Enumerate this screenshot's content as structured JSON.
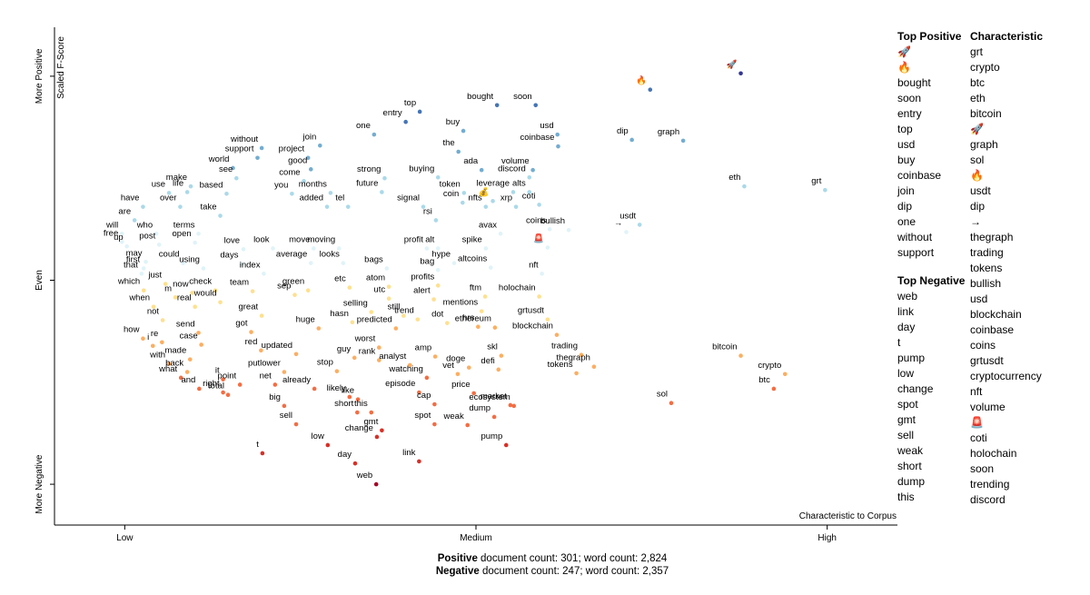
{
  "chart_data": {
    "type": "scatter",
    "x_label": "Characteristic to Corpus",
    "y_label": "Scaled F-Score",
    "xlim": [
      -0.1,
      1.1
    ],
    "ylim": [
      -0.1,
      1.12
    ],
    "xticks": [
      {
        "value": 0,
        "label": "Low"
      },
      {
        "value": 0.5,
        "label": "Medium"
      },
      {
        "value": 1,
        "label": "High"
      }
    ],
    "yticks": [
      {
        "value": 0,
        "label": "More Negative"
      },
      {
        "value": 0.5,
        "label": "Even"
      },
      {
        "value": 1,
        "label": "More Positive"
      }
    ],
    "color_scale": [
      "#a50026",
      "#d73027",
      "#f46d43",
      "#fdae61",
      "#fee090",
      "#e0f3f8",
      "#abd9e9",
      "#74add1",
      "#4575b4",
      "#313695"
    ],
    "labels": [
      "top",
      "bought",
      "soon",
      "one",
      "entry",
      "buy",
      "usd",
      "join",
      "without",
      "support",
      "project",
      "the",
      "coinbase",
      "world",
      "good",
      "ada",
      "volume",
      "dip",
      "graph",
      "make",
      "see",
      "come",
      "strong",
      "buying",
      "discord",
      "use",
      "life",
      "based",
      "you",
      "months",
      "future",
      "token",
      "leverage",
      "alts",
      "eth",
      "grt",
      "have",
      "over",
      "added",
      "tel",
      "signal",
      "coin",
      "nfts",
      "coti",
      "xrp",
      "take",
      "are",
      "rsi",
      "will",
      "who",
      "terms",
      "coins",
      "avax",
      "bullish",
      "usdt",
      "free",
      "up",
      "post",
      "open",
      "love",
      "look",
      "move",
      "moving",
      "profit",
      "alt",
      "spike",
      "may",
      "days",
      "average",
      "looks",
      "hype",
      "first",
      "could",
      "using",
      "index",
      "bags",
      "bag",
      "altcoins",
      "nft",
      "that",
      "just",
      "check",
      "team",
      "sep",
      "green",
      "etc",
      "atom",
      "profits",
      "which",
      "m",
      "now",
      "utc",
      "ftm",
      "holochain",
      "alert",
      "would",
      "real",
      "when",
      "great",
      "selling",
      "still",
      "trend",
      "mentions",
      "not",
      "hasn",
      "dot",
      "hrs",
      "ethereum",
      "grtusdt",
      "huge",
      "predicted",
      "got",
      "send",
      "blockchain",
      "how",
      "re",
      "i",
      "case",
      "red",
      "worst",
      "updated",
      "guy",
      "rank",
      "amp",
      "skl",
      "trading",
      "with",
      "made",
      "analyst",
      "putlower",
      "stop",
      "doge",
      "defi",
      "thegraph",
      "back",
      "vet",
      "watching",
      "tokens",
      "it",
      "what",
      "point",
      "net",
      "already",
      "and",
      "right",
      "episode",
      "total",
      "likely",
      "price",
      "like",
      "market",
      "cap",
      "ecosystem",
      "big",
      "short",
      "this",
      "dump",
      "sell",
      "spot",
      "weak",
      "gmt",
      "change",
      "low",
      "pump",
      "sol",
      "bitcoin",
      "crypto",
      "btc",
      "t",
      "day",
      "link",
      "web",
      "🚀",
      "🔥",
      "💰",
      "🚨",
      "→"
    ],
    "x": [
      0.42,
      0.53,
      0.585,
      0.355,
      0.4,
      0.482,
      0.616,
      0.278,
      0.195,
      0.189,
      0.261,
      0.475,
      0.617,
      0.154,
      0.265,
      0.508,
      0.581,
      0.722,
      0.795,
      0.094,
      0.159,
      0.255,
      0.37,
      0.446,
      0.576,
      0.063,
      0.089,
      0.145,
      0.238,
      0.293,
      0.366,
      0.483,
      0.553,
      0.576,
      0.882,
      0.997,
      0.026,
      0.079,
      0.288,
      0.318,
      0.425,
      0.481,
      0.514,
      0.59,
      0.557,
      0.136,
      0.014,
      0.443,
      -0.004,
      0.045,
      0.105,
      0.605,
      0.535,
      0.632,
      0.733,
      -0.004,
      0.003,
      0.049,
      0.1,
      0.169,
      0.211,
      0.269,
      0.305,
      0.43,
      0.446,
      0.514,
      0.03,
      0.167,
      0.265,
      0.311,
      0.469,
      0.027,
      0.083,
      0.112,
      0.198,
      0.373,
      0.446,
      0.521,
      0.594,
      0.024,
      0.058,
      0.129,
      0.182,
      0.242,
      0.261,
      0.32,
      0.376,
      0.446,
      0.027,
      0.072,
      0.096,
      0.376,
      0.513,
      0.59,
      0.44,
      0.136,
      0.1,
      0.041,
      0.195,
      0.351,
      0.397,
      0.417,
      0.508,
      0.054,
      0.324,
      0.459,
      0.503,
      0.527,
      0.602,
      0.276,
      0.386,
      0.18,
      0.105,
      0.615,
      0.026,
      0.053,
      0.04,
      0.109,
      0.194,
      0.362,
      0.244,
      0.327,
      0.362,
      0.442,
      0.536,
      0.65,
      0.063,
      0.093,
      0.406,
      0.227,
      0.302,
      0.49,
      0.532,
      0.668,
      0.089,
      0.474,
      0.43,
      0.643,
      0.14,
      0.08,
      0.164,
      0.214,
      0.27,
      0.106,
      0.14,
      0.419,
      0.147,
      0.32,
      0.497,
      0.332,
      0.549,
      0.441,
      0.554,
      0.227,
      0.331,
      0.351,
      0.526,
      0.244,
      0.441,
      0.488,
      0.366,
      0.359,
      0.289,
      0.543,
      0.778,
      0.877,
      0.94,
      0.924,
      0.196,
      0.328,
      0.419,
      0.358,
      0.877,
      0.748,
      0.524,
      0.602,
      0.714
    ],
    "y": [
      0.913,
      0.929,
      0.929,
      0.857,
      0.888,
      0.866,
      0.857,
      0.83,
      0.824,
      0.8,
      0.8,
      0.815,
      0.828,
      0.775,
      0.772,
      0.77,
      0.77,
      0.844,
      0.842,
      0.73,
      0.75,
      0.743,
      0.75,
      0.752,
      0.752,
      0.714,
      0.716,
      0.712,
      0.712,
      0.714,
      0.716,
      0.714,
      0.716,
      0.716,
      0.73,
      0.721,
      0.68,
      0.68,
      0.68,
      0.68,
      0.68,
      0.69,
      0.68,
      0.685,
      0.68,
      0.658,
      0.647,
      0.647,
      0.614,
      0.614,
      0.614,
      0.625,
      0.614,
      0.623,
      0.636,
      0.594,
      0.583,
      0.587,
      0.592,
      0.576,
      0.578,
      0.578,
      0.578,
      0.578,
      0.578,
      0.578,
      0.545,
      0.54,
      0.542,
      0.542,
      0.542,
      0.529,
      0.542,
      0.529,
      0.516,
      0.529,
      0.525,
      0.531,
      0.516,
      0.516,
      0.491,
      0.475,
      0.473,
      0.464,
      0.475,
      0.482,
      0.484,
      0.487,
      0.475,
      0.458,
      0.469,
      0.455,
      0.46,
      0.46,
      0.453,
      0.446,
      0.435,
      0.435,
      0.413,
      0.422,
      0.413,
      0.404,
      0.424,
      0.402,
      0.397,
      0.395,
      0.386,
      0.384,
      0.404,
      0.382,
      0.382,
      0.373,
      0.371,
      0.366,
      0.357,
      0.348,
      0.339,
      0.342,
      0.328,
      0.335,
      0.319,
      0.31,
      0.304,
      0.313,
      0.315,
      0.317,
      0.295,
      0.306,
      0.292,
      0.275,
      0.277,
      0.286,
      0.281,
      0.288,
      0.275,
      0.27,
      0.261,
      0.272,
      0.257,
      0.261,
      0.244,
      0.244,
      0.234,
      0.234,
      0.225,
      0.225,
      0.219,
      0.214,
      0.223,
      0.208,
      0.194,
      0.196,
      0.192,
      0.192,
      0.176,
      0.176,
      0.165,
      0.147,
      0.147,
      0.145,
      0.132,
      0.116,
      0.096,
      0.096,
      0.199,
      0.315,
      0.27,
      0.234,
      0.076,
      0.051,
      0.056,
      0.0,
      1.007,
      0.967,
      0.694,
      0.58,
      0.618
    ]
  },
  "top_positive": {
    "title": "Top Positive",
    "terms": [
      "🚀",
      "🔥",
      "bought",
      "soon",
      "entry",
      "top",
      "usd",
      "buy",
      "coinbase",
      "join",
      "dip",
      "one",
      "without",
      "support"
    ]
  },
  "top_negative": {
    "title": "Top Negative",
    "terms": [
      "web",
      "link",
      "day",
      "t",
      "pump",
      "low",
      "change",
      "spot",
      "gmt",
      "sell",
      "weak",
      "short",
      "dump",
      "this"
    ]
  },
  "characteristic": {
    "title": "Characteristic",
    "terms": [
      "grt",
      "crypto",
      "btc",
      "eth",
      "bitcoin",
      "🚀",
      "graph",
      "sol",
      "🔥",
      "usdt",
      "dip",
      "→",
      "thegraph",
      "trading",
      "tokens",
      "bullish",
      "usd",
      "blockchain",
      "coinbase",
      "coins",
      "grtusdt",
      "cryptocurrency",
      "nft",
      "volume",
      "🚨",
      "coti",
      "holochain",
      "soon",
      "trending",
      "discord"
    ]
  },
  "footer": [
    {
      "label": "Positive",
      "text": " document count: 301; word count: 2,824"
    },
    {
      "label": "Negative",
      "text": " document count: 247; word count: 2,357"
    }
  ]
}
